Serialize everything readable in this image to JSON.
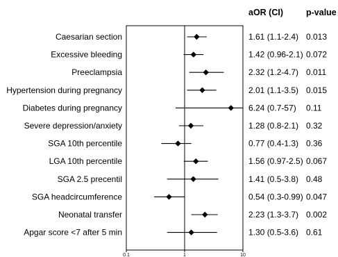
{
  "chart_data": {
    "type": "forest",
    "x_scale": "log",
    "xlim": [
      0.1,
      10
    ],
    "x_ticks": [
      "0.1",
      "1",
      "10"
    ],
    "reference_line": 1,
    "columns": {
      "estimate_header": "aOR (CI)",
      "pvalue_header": "p-value"
    },
    "rows": [
      {
        "label": "Caesarian section",
        "or": 1.61,
        "lo": 1.1,
        "hi": 2.4,
        "ci_text": "1.61 (1.1-2.4)",
        "p": "0.013"
      },
      {
        "label": "Excessive bleeding",
        "or": 1.42,
        "lo": 0.96,
        "hi": 2.1,
        "ci_text": "1.42 (0.96-2.1)",
        "p": "0.072"
      },
      {
        "label": "Preeclampsia",
        "or": 2.32,
        "lo": 1.2,
        "hi": 4.7,
        "ci_text": "2.32 (1.2-4.7)",
        "p": "0.011"
      },
      {
        "label": "Hypertension during pregnancy",
        "or": 2.01,
        "lo": 1.1,
        "hi": 3.5,
        "ci_text": "2.01 (1.1-3.5)",
        "p": "0.015"
      },
      {
        "label": "Diabetes during pregnancy",
        "or": 6.24,
        "lo": 0.7,
        "hi": 57,
        "ci_text": "6.24 (0.7-57)",
        "p": "0.11"
      },
      {
        "label": "Severe depression/anxiety",
        "or": 1.28,
        "lo": 0.8,
        "hi": 2.1,
        "ci_text": "1.28 (0.8-2.1)",
        "p": "0.32"
      },
      {
        "label": "SGA 10th percentile",
        "or": 0.77,
        "lo": 0.4,
        "hi": 1.3,
        "ci_text": "0.77 (0.4-1.3)",
        "p": "0.36"
      },
      {
        "label": "LGA 10th percentile",
        "or": 1.56,
        "lo": 0.97,
        "hi": 2.5,
        "ci_text": "1.56 (0.97-2.5)",
        "p": "0.067"
      },
      {
        "label": "SGA 2.5 precentil",
        "or": 1.41,
        "lo": 0.5,
        "hi": 3.8,
        "ci_text": "1.41 (0.5-3.8)",
        "p": "0.48"
      },
      {
        "label": "SGA headcircumference",
        "or": 0.54,
        "lo": 0.3,
        "hi": 0.99,
        "ci_text": "0.54 (0.3-0.99)",
        "p": "0.047"
      },
      {
        "label": "Neonatal transfer",
        "or": 2.23,
        "lo": 1.3,
        "hi": 3.7,
        "ci_text": "2.23 (1.3-3.7)",
        "p": "0.002"
      },
      {
        "label": "Apgar score <7 after 5 min",
        "or": 1.3,
        "lo": 0.5,
        "hi": 3.6,
        "ci_text": "1.30 (0.5-3.6)",
        "p": "0.61"
      }
    ],
    "marker_color": "#000000",
    "line_color": "#000000"
  }
}
